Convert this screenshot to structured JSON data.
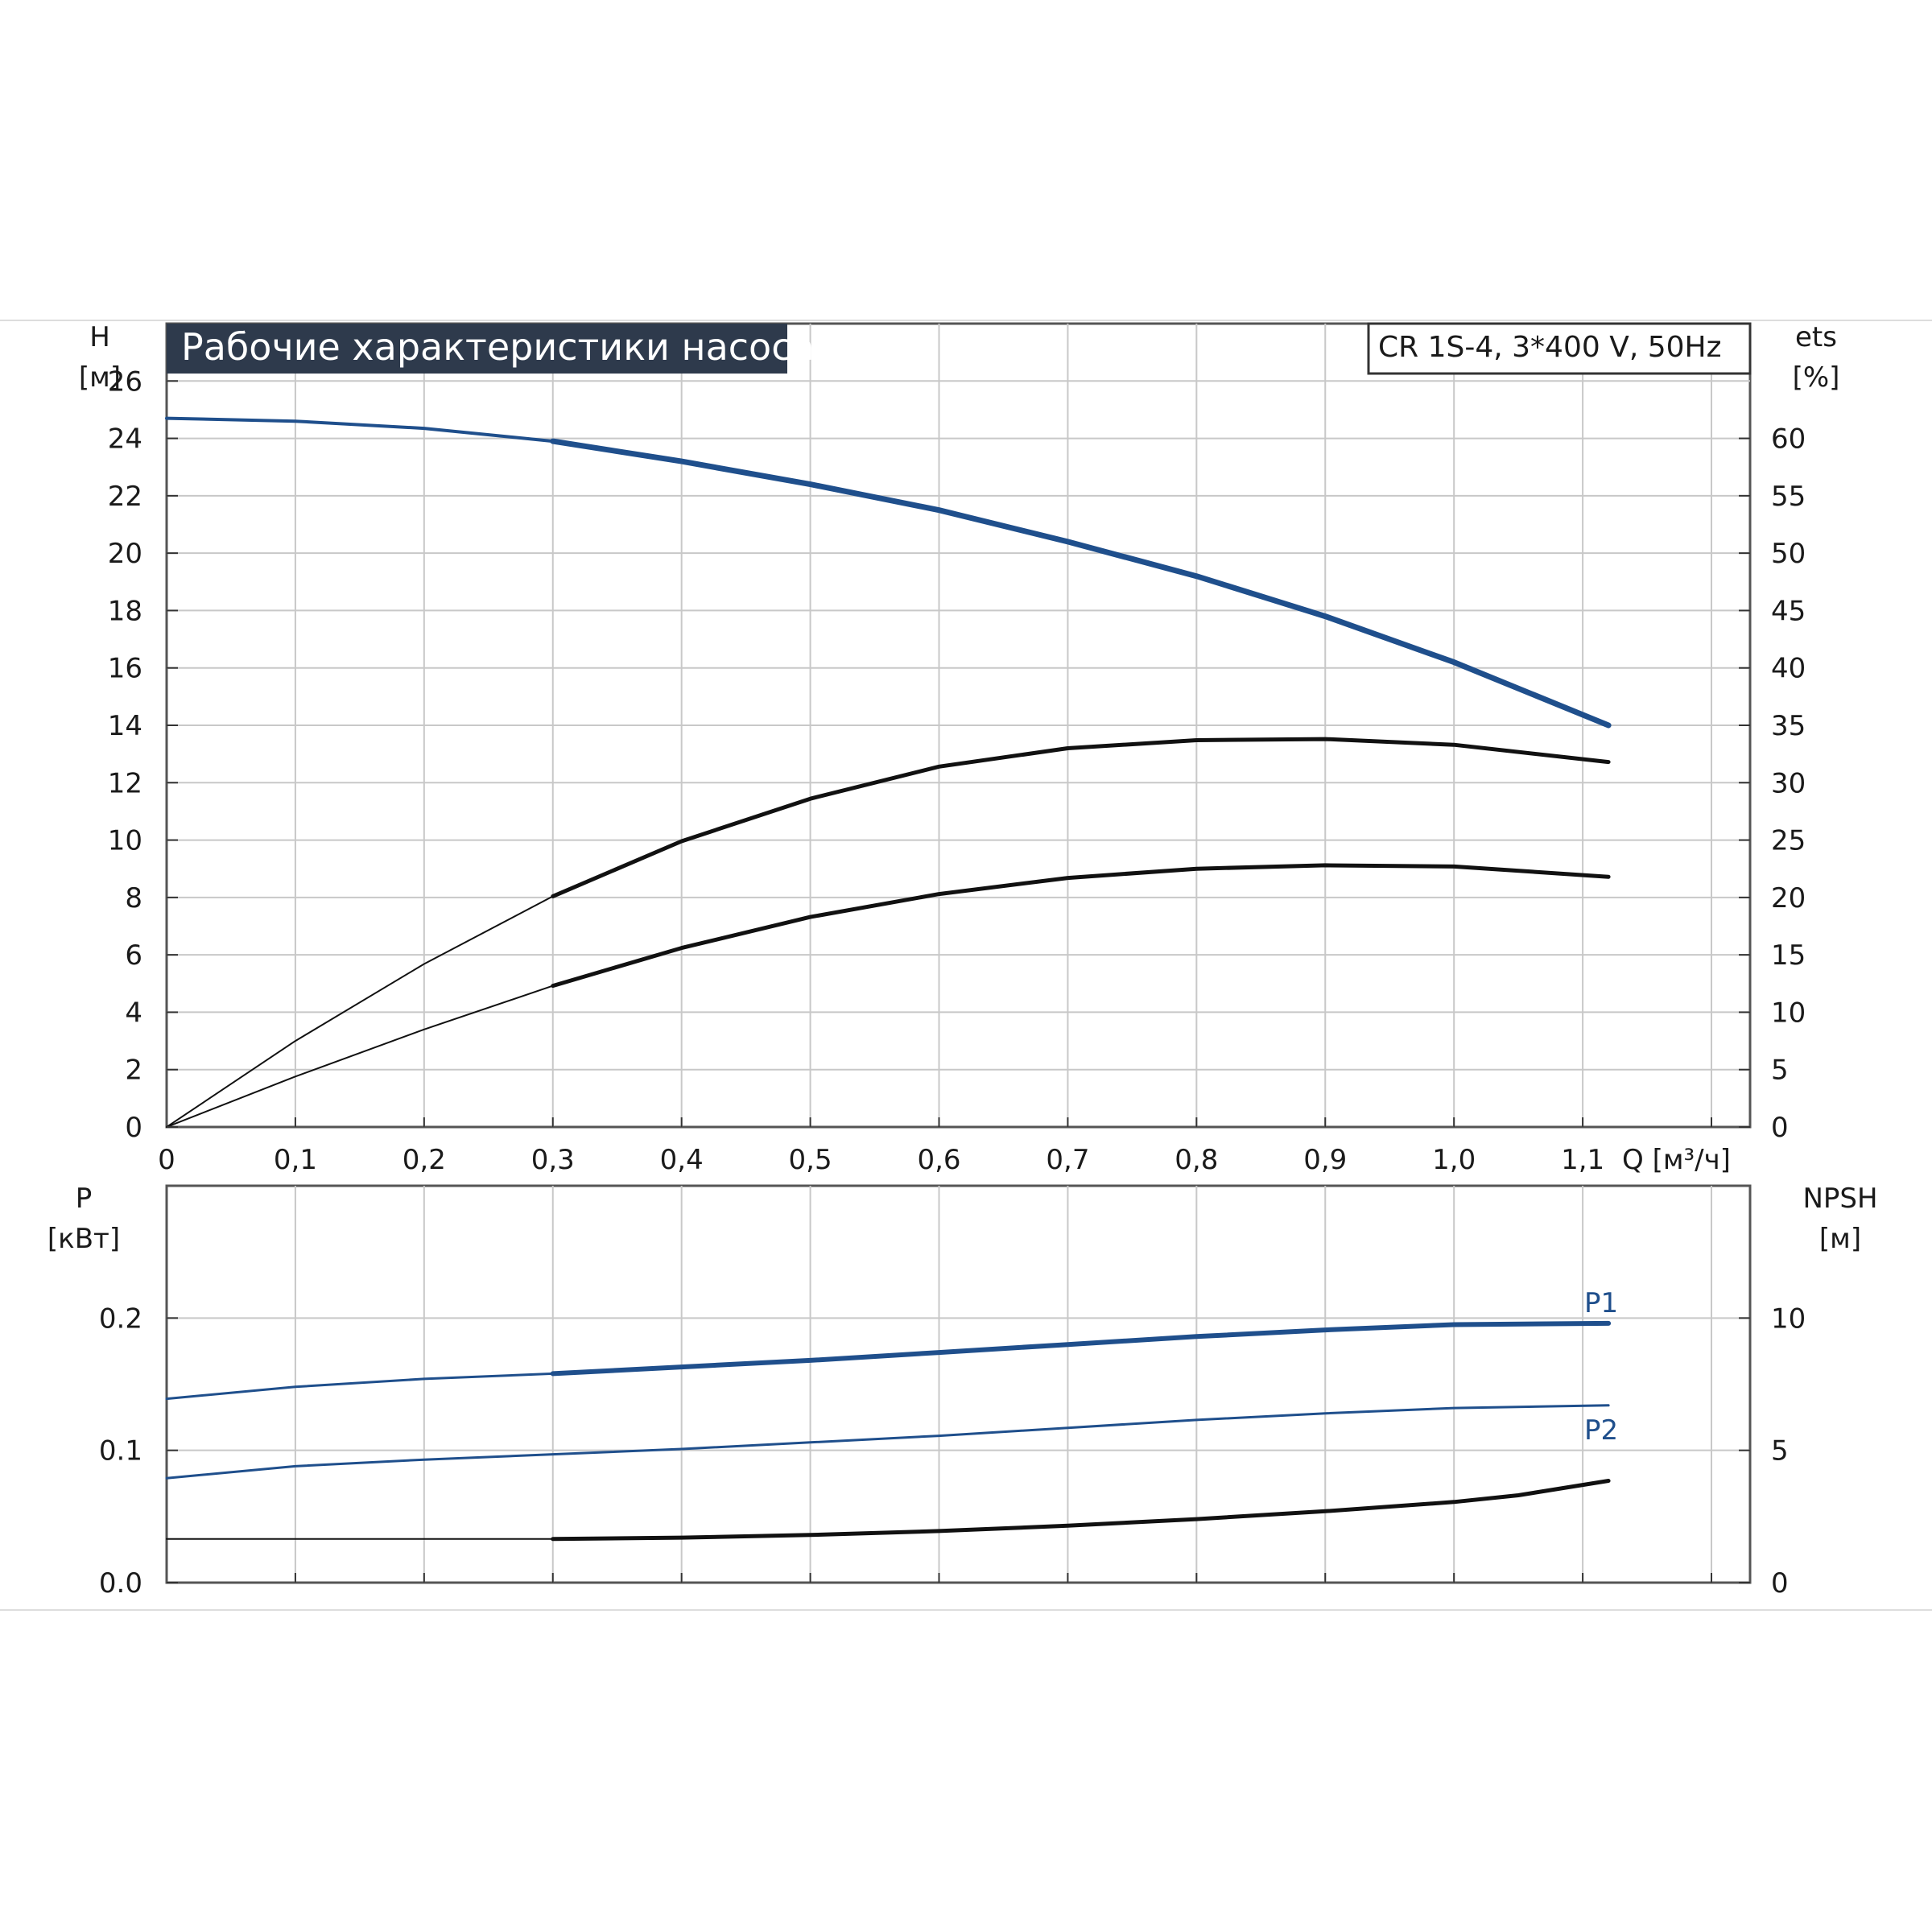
{
  "title": "Рабочие характеристики насоса",
  "model": "CR 1S-4, 3*400 V, 50Hz",
  "colors": {
    "blue": "#1f4f8c",
    "black": "#111111",
    "grid": "#c8c8c8",
    "title_bg": "#2e3a4c"
  },
  "chart_data": [
    {
      "type": "line",
      "name": "top-panel",
      "x_label": "Q [м³/ч]",
      "x_ticks": [
        "0",
        "0,1",
        "0,2",
        "0,3",
        "0,4",
        "0,5",
        "0,6",
        "0,7",
        "0,8",
        "0,9",
        "1,0",
        "1,1"
      ],
      "xlim": [
        0,
        1.23
      ],
      "left_axis": {
        "label_line1": "H",
        "label_line2": "[м]",
        "ylim": [
          0,
          28
        ],
        "ticks": [
          0,
          2,
          4,
          6,
          8,
          10,
          12,
          14,
          16,
          18,
          20,
          22,
          24,
          26
        ]
      },
      "right_axis": {
        "label_line1": "ets",
        "label_line2": "[%]",
        "ylim": [
          0,
          70
        ],
        "ticks": [
          0,
          5,
          10,
          15,
          20,
          25,
          30,
          35,
          40,
          45,
          50,
          55,
          60
        ]
      },
      "grid": true,
      "series": [
        {
          "axis": "left",
          "color": "blue",
          "width": 4,
          "x": [
            0,
            0.1,
            0.2,
            0.3,
            0.4,
            0.5,
            0.6,
            0.7,
            0.8,
            0.9,
            1.0,
            1.12
          ],
          "y": [
            24.7,
            24.6,
            24.35,
            23.9,
            23.2,
            22.4,
            21.5,
            20.4,
            19.2,
            17.8,
            16.2,
            14.0
          ],
          "bold_from": 0.3
        },
        {
          "axis": "right",
          "color": "black",
          "width": 2,
          "x": [
            0,
            0.1,
            0.2,
            0.3,
            0.4,
            0.5,
            0.6,
            0.7,
            0.8,
            0.9,
            1.0,
            1.12
          ],
          "y": [
            0,
            7.5,
            14.2,
            20.1,
            24.9,
            28.6,
            31.4,
            33.0,
            33.7,
            33.8,
            33.3,
            31.8
          ],
          "bold_from": 0.3
        },
        {
          "axis": "right",
          "color": "black",
          "width": 2,
          "x": [
            0,
            0.1,
            0.2,
            0.3,
            0.4,
            0.5,
            0.6,
            0.7,
            0.8,
            0.9,
            1.0,
            1.12
          ],
          "y": [
            0,
            4.4,
            8.5,
            12.3,
            15.6,
            18.3,
            20.3,
            21.7,
            22.5,
            22.8,
            22.7,
            21.8
          ],
          "bold_from": 0.3
        }
      ]
    },
    {
      "type": "line",
      "name": "bottom-panel",
      "xlim": [
        0,
        1.23
      ],
      "left_axis": {
        "label_line1": "P",
        "label_line2": "[кВт]",
        "ylim": [
          0,
          0.3
        ],
        "ticks": [
          "0.0",
          "0.1",
          "0.2"
        ]
      },
      "right_axis": {
        "label_line1": "NPSH",
        "label_line2": "[м]",
        "ylim": [
          0,
          15
        ],
        "ticks": [
          "0",
          "5",
          "10"
        ]
      },
      "grid": true,
      "series": [
        {
          "name": "P1",
          "axis": "left",
          "color": "blue",
          "width": 3,
          "x": [
            0,
            0.1,
            0.2,
            0.3,
            0.4,
            0.5,
            0.6,
            0.7,
            0.8,
            0.9,
            1.0,
            1.12
          ],
          "y": [
            0.139,
            0.148,
            0.154,
            0.158,
            0.163,
            0.168,
            0.174,
            0.18,
            0.186,
            0.191,
            0.195,
            0.196
          ],
          "bold_from": 0.3
        },
        {
          "name": "P2",
          "axis": "left",
          "color": "blue",
          "width": 3,
          "x": [
            0,
            0.1,
            0.2,
            0.3,
            0.4,
            0.5,
            0.6,
            0.7,
            0.8,
            0.9,
            1.0,
            1.12
          ],
          "y": [
            0.079,
            0.088,
            0.093,
            0.097,
            0.101,
            0.106,
            0.111,
            0.117,
            0.123,
            0.128,
            0.132,
            0.134
          ],
          "bold_from": 1.5
        },
        {
          "axis": "right",
          "color": "black",
          "width": 2,
          "x": [
            0,
            0.1,
            0.2,
            0.3,
            0.4,
            0.5,
            0.6,
            0.7,
            0.8,
            0.9,
            1.0,
            1.05,
            1.12
          ],
          "y": [
            1.65,
            1.65,
            1.65,
            1.65,
            1.7,
            1.8,
            1.95,
            2.15,
            2.4,
            2.7,
            3.05,
            3.3,
            3.85
          ],
          "bold_from": 0.3
        }
      ]
    }
  ]
}
